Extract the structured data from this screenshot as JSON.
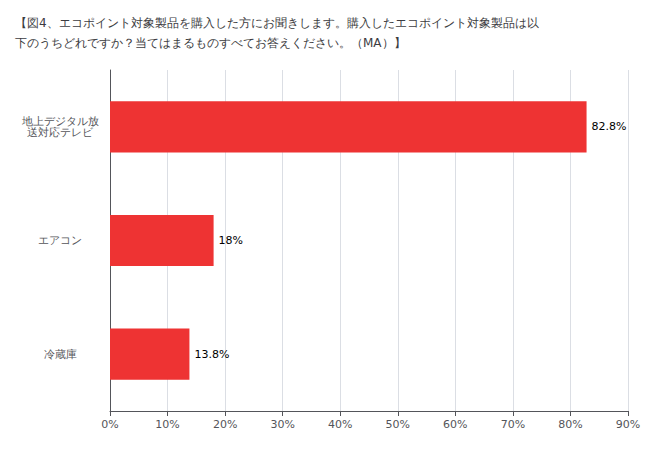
{
  "chart_data": {
    "type": "bar",
    "title": "【図4、エコポイント対象製品を購入した方にお聞きします。購入したエコポイント対象製品は以\n下のうちどれですか？当てはまるものすべてお答えください。（MA）】",
    "orientation": "horizontal",
    "categories": [
      "地上デジタル放\n送対応テレビ",
      "エアコン",
      "冷蔵庫"
    ],
    "values": [
      82.8,
      18.0,
      13.8
    ],
    "value_labels": [
      "82.8%",
      "18%",
      "13.8%"
    ],
    "data_labels": true,
    "color": "#ee3333",
    "xlim": [
      0,
      90
    ],
    "xticks": [
      {
        "value": 0,
        "label": "0%"
      },
      {
        "value": 10,
        "label": "10%"
      },
      {
        "value": 20,
        "label": "20%"
      },
      {
        "value": 30,
        "label": "30%"
      },
      {
        "value": 40,
        "label": "40%"
      },
      {
        "value": 50,
        "label": "50%"
      },
      {
        "value": 60,
        "label": "60%"
      },
      {
        "value": 70,
        "label": "70%"
      },
      {
        "value": 80,
        "label": "80%"
      },
      {
        "value": 90,
        "label": "90%"
      }
    ],
    "grid": true
  }
}
